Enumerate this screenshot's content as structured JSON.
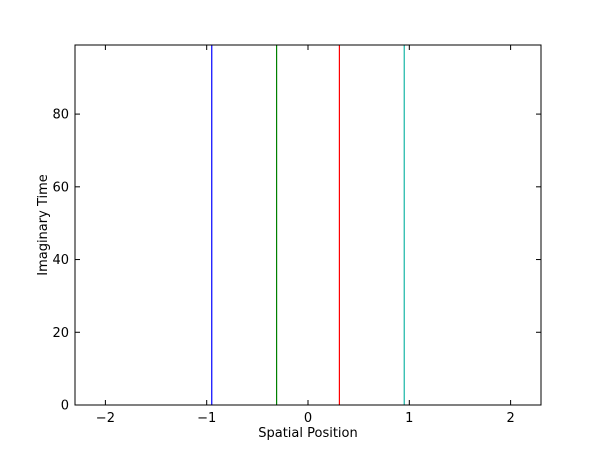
{
  "chart_data": {
    "type": "line",
    "xlabel": "Spatial Position",
    "ylabel": "Imaginary Time",
    "xlim": [
      -2.3,
      2.3
    ],
    "ylim": [
      0,
      99
    ],
    "x_ticks": [
      -2,
      -1,
      0,
      1,
      2
    ],
    "x_tick_labels": [
      "−2",
      "−1",
      "0",
      "1",
      "2"
    ],
    "y_ticks": [
      0,
      20,
      40,
      60,
      80
    ],
    "y_tick_labels": [
      "0",
      "20",
      "40",
      "60",
      "80"
    ],
    "grid": false,
    "legend": "none",
    "series": [
      {
        "x": [
          -0.95,
          -0.95
        ],
        "y": [
          0,
          99
        ],
        "color": "#0000ff"
      },
      {
        "x": [
          -0.31,
          -0.31
        ],
        "y": [
          0,
          99
        ],
        "color": "#008000"
      },
      {
        "x": [
          0.31,
          0.31
        ],
        "y": [
          0,
          99
        ],
        "color": "#ff0000"
      },
      {
        "x": [
          0.95,
          0.95
        ],
        "y": [
          0,
          99
        ],
        "color": "#17b5a5"
      }
    ]
  }
}
